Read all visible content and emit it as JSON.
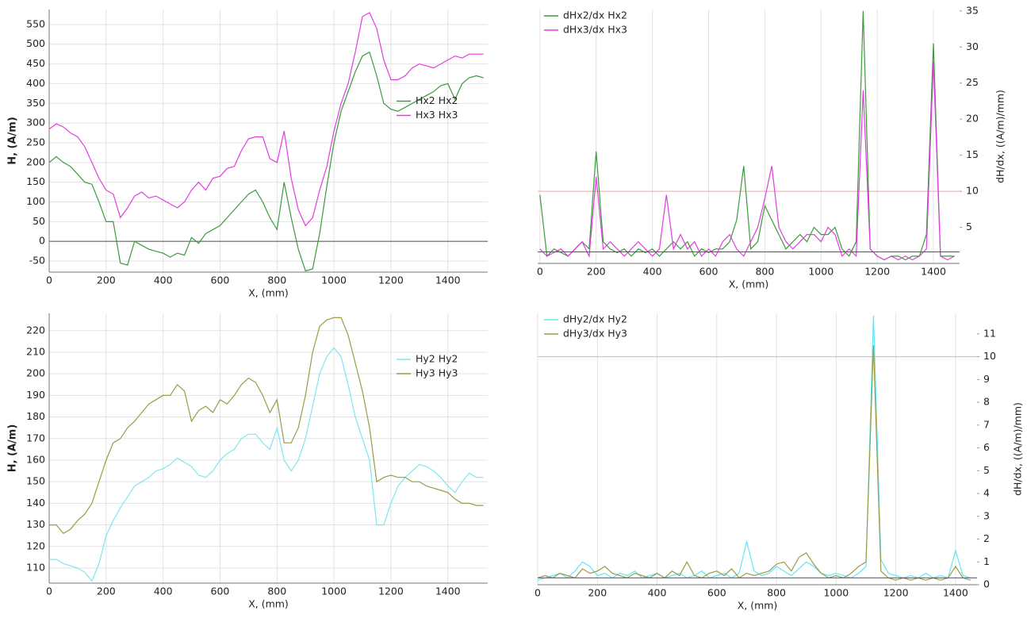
{
  "chart_data": [
    {
      "type": "line",
      "xlabel": "X, (mm)",
      "ylabel": "H, (A/m)",
      "y_axis_side": "left",
      "xgrid": true,
      "ygrid": true,
      "zero_line": true,
      "legend": "center-right",
      "xlim": [
        0,
        1540
      ],
      "ylim": [
        -78,
        588
      ],
      "xticks": [
        0,
        200,
        400,
        600,
        800,
        1000,
        1200,
        1400
      ],
      "yticks": [
        -50,
        0,
        50,
        100,
        150,
        200,
        250,
        300,
        350,
        400,
        450,
        500,
        550
      ],
      "x": [
        0,
        25,
        50,
        75,
        100,
        125,
        150,
        175,
        200,
        225,
        250,
        275,
        300,
        325,
        350,
        375,
        400,
        425,
        450,
        475,
        500,
        525,
        550,
        575,
        600,
        625,
        650,
        675,
        700,
        725,
        750,
        775,
        800,
        825,
        850,
        875,
        900,
        925,
        950,
        975,
        1000,
        1025,
        1050,
        1075,
        1100,
        1125,
        1150,
        1175,
        1200,
        1225,
        1250,
        1275,
        1300,
        1325,
        1350,
        1375,
        1400,
        1425,
        1450,
        1475,
        1500,
        1525
      ],
      "series": [
        {
          "name": "Hx2 Hx2",
          "color": "#3c9a3c",
          "values": [
            200,
            215,
            200,
            190,
            170,
            150,
            145,
            100,
            50,
            50,
            -55,
            -60,
            0,
            -10,
            -20,
            -25,
            -30,
            -40,
            -30,
            -35,
            10,
            -5,
            20,
            30,
            40,
            60,
            80,
            100,
            120,
            130,
            100,
            60,
            30,
            150,
            60,
            -20,
            -75,
            -70,
            20,
            140,
            250,
            330,
            380,
            430,
            470,
            480,
            420,
            350,
            335,
            330,
            340,
            350,
            360,
            370,
            380,
            395,
            400,
            360,
            400,
            415,
            420,
            415
          ]
        },
        {
          "name": "Hx3 Hx3",
          "color": "#e23ce0",
          "values": [
            285,
            298,
            290,
            275,
            265,
            240,
            200,
            160,
            130,
            120,
            60,
            85,
            115,
            125,
            110,
            115,
            105,
            95,
            85,
            100,
            130,
            150,
            130,
            160,
            165,
            185,
            190,
            230,
            260,
            265,
            265,
            210,
            200,
            280,
            160,
            80,
            40,
            60,
            130,
            190,
            280,
            350,
            400,
            480,
            570,
            580,
            540,
            460,
            410,
            410,
            420,
            440,
            450,
            445,
            440,
            450,
            460,
            470,
            465,
            475,
            475,
            475
          ]
        }
      ]
    },
    {
      "type": "line",
      "xlabel": "X, (mm)",
      "ylabel": "dH/dx, ((A/m)/mm)",
      "y_axis_side": "right",
      "xgrid": true,
      "ygrid": false,
      "threshold": 10,
      "baseline": 1.6,
      "legend": "upper-left",
      "xlim": [
        -8,
        1493
      ],
      "ylim": [
        0,
        35.2
      ],
      "xticks": [
        0,
        200,
        400,
        600,
        800,
        1000,
        1200,
        1400
      ],
      "yticks": [
        5,
        10,
        15,
        20,
        25,
        30,
        35
      ],
      "x": [
        0,
        25,
        50,
        75,
        100,
        125,
        150,
        175,
        200,
        225,
        250,
        275,
        300,
        325,
        350,
        375,
        400,
        425,
        450,
        475,
        500,
        525,
        550,
        575,
        600,
        625,
        650,
        675,
        700,
        725,
        750,
        775,
        800,
        825,
        850,
        875,
        900,
        925,
        950,
        975,
        1000,
        1025,
        1050,
        1075,
        1100,
        1125,
        1150,
        1175,
        1200,
        1225,
        1250,
        1275,
        1300,
        1325,
        1350,
        1375,
        1400,
        1425,
        1450,
        1475
      ],
      "series": [
        {
          "name": "dHx2/dx Hx2",
          "color": "#3c9a3c",
          "values": [
            9.5,
            1,
            2,
            1.5,
            1,
            2,
            3,
            2,
            15.5,
            3,
            2,
            1.5,
            2,
            1,
            2,
            1.5,
            2,
            1,
            2,
            3,
            2,
            3,
            1,
            2,
            1.5,
            2,
            2,
            3,
            6,
            13.5,
            2,
            3,
            8,
            6,
            4,
            2,
            3,
            4,
            3,
            5,
            4,
            4,
            5,
            2,
            1,
            3,
            35,
            2,
            1,
            0.5,
            1,
            1,
            0.5,
            1,
            1,
            4,
            30.5,
            1,
            1,
            1
          ]
        },
        {
          "name": "dHx3/dx Hx3",
          "color": "#e23ce0",
          "values": [
            2,
            1,
            1.5,
            2,
            1,
            2,
            3,
            1,
            12,
            2,
            3,
            2,
            1,
            2,
            3,
            2,
            1,
            2,
            9.5,
            2,
            4,
            2,
            3,
            1,
            2,
            1,
            3,
            4,
            2,
            1,
            3,
            5,
            9,
            13.5,
            5,
            3,
            2,
            3,
            4,
            4,
            3,
            5,
            4,
            1,
            2,
            1,
            24,
            2,
            1,
            0.5,
            1,
            0.5,
            1,
            0.5,
            1,
            2,
            28,
            1,
            0.5,
            1
          ]
        }
      ]
    },
    {
      "type": "line",
      "xlabel": "X, (mm)",
      "ylabel": "H, (A/m)",
      "y_axis_side": "left",
      "xgrid": true,
      "ygrid": true,
      "legend": "upper-right",
      "xlim": [
        0,
        1540
      ],
      "ylim": [
        103,
        228
      ],
      "xticks": [
        0,
        200,
        400,
        600,
        800,
        1000,
        1200,
        1400
      ],
      "yticks": [
        110,
        120,
        130,
        140,
        150,
        160,
        170,
        180,
        190,
        200,
        210,
        220
      ],
      "x": [
        0,
        25,
        50,
        75,
        100,
        125,
        150,
        175,
        200,
        225,
        250,
        275,
        300,
        325,
        350,
        375,
        400,
        425,
        450,
        475,
        500,
        525,
        550,
        575,
        600,
        625,
        650,
        675,
        700,
        725,
        750,
        775,
        800,
        825,
        850,
        875,
        900,
        925,
        950,
        975,
        1000,
        1025,
        1050,
        1075,
        1100,
        1125,
        1150,
        1175,
        1200,
        1225,
        1250,
        1275,
        1300,
        1325,
        1350,
        1375,
        1400,
        1425,
        1450,
        1475,
        1500,
        1525
      ],
      "series": [
        {
          "name": "Hy2 Hy2",
          "color": "#7ee6f0",
          "values": [
            114,
            114,
            112,
            111,
            110,
            108,
            104,
            112,
            125,
            132,
            138,
            143,
            148,
            150,
            152,
            155,
            156,
            158,
            161,
            159,
            157,
            153,
            152,
            155,
            160,
            163,
            165,
            170,
            172,
            172,
            168,
            165,
            175,
            160,
            155,
            160,
            170,
            185,
            200,
            208,
            212,
            208,
            195,
            180,
            170,
            160,
            130,
            130,
            140,
            148,
            152,
            155,
            158,
            157,
            155,
            152,
            148,
            145,
            150,
            154,
            152,
            152
          ]
        },
        {
          "name": "Hy3 Hy3",
          "color": "#9c9a44",
          "values": [
            130,
            130,
            126,
            128,
            132,
            135,
            140,
            150,
            160,
            168,
            170,
            175,
            178,
            182,
            186,
            188,
            190,
            190,
            195,
            192,
            178,
            183,
            185,
            182,
            188,
            186,
            190,
            195,
            198,
            196,
            190,
            182,
            188,
            168,
            168,
            175,
            190,
            210,
            222,
            225,
            226,
            226,
            218,
            205,
            192,
            175,
            150,
            152,
            153,
            152,
            152,
            150,
            150,
            148,
            147,
            146,
            145,
            142,
            140,
            140,
            139,
            139
          ]
        }
      ]
    },
    {
      "type": "line",
      "xlabel": "X, (mm)",
      "ylabel": "dH/dx, ((A/m)/mm)",
      "y_axis_side": "right",
      "xgrid": true,
      "ygrid": false,
      "threshold": 10,
      "baseline": 0.3,
      "legend": "upper-left",
      "xlim": [
        0,
        1472
      ],
      "ylim": [
        0,
        11.9
      ],
      "xticks": [
        0,
        200,
        400,
        600,
        800,
        1000,
        1200,
        1400
      ],
      "yticks": [
        0,
        1,
        2,
        3,
        4,
        5,
        6,
        7,
        8,
        9,
        10,
        11
      ],
      "x": [
        0,
        25,
        50,
        75,
        100,
        125,
        150,
        175,
        200,
        225,
        250,
        275,
        300,
        325,
        350,
        375,
        400,
        425,
        450,
        475,
        500,
        525,
        550,
        575,
        600,
        625,
        650,
        675,
        700,
        725,
        750,
        775,
        800,
        825,
        850,
        875,
        900,
        925,
        950,
        975,
        1000,
        1025,
        1050,
        1075,
        1100,
        1125,
        1150,
        1175,
        1200,
        1225,
        1250,
        1275,
        1300,
        1325,
        1350,
        1375,
        1400,
        1425,
        1450
      ],
      "series": [
        {
          "name": "dHy2/dx Hy2",
          "color": "#5ee8f4",
          "values": [
            0.2,
            0.3,
            0.4,
            0.5,
            0.3,
            0.6,
            1,
            0.8,
            0.4,
            0.5,
            0.3,
            0.5,
            0.4,
            0.6,
            0.3,
            0.4,
            0.5,
            0.3,
            0.4,
            0.5,
            0.3,
            0.4,
            0.6,
            0.3,
            0.4,
            0.5,
            0.3,
            0.5,
            1.9,
            0.6,
            0.4,
            0.5,
            0.8,
            0.6,
            0.4,
            0.7,
            1,
            0.8,
            0.5,
            0.4,
            0.5,
            0.4,
            0.3,
            0.5,
            0.8,
            11.8,
            1.1,
            0.5,
            0.4,
            0.3,
            0.4,
            0.3,
            0.5,
            0.3,
            0.4,
            0.3,
            1.5,
            0.4,
            0.3
          ]
        },
        {
          "name": "dHy3/dx Hy3",
          "color": "#9c9a44",
          "values": [
            0.3,
            0.4,
            0.3,
            0.5,
            0.4,
            0.3,
            0.7,
            0.5,
            0.6,
            0.8,
            0.5,
            0.4,
            0.3,
            0.5,
            0.4,
            0.3,
            0.5,
            0.3,
            0.6,
            0.4,
            1,
            0.4,
            0.3,
            0.5,
            0.6,
            0.4,
            0.7,
            0.3,
            0.5,
            0.4,
            0.5,
            0.6,
            0.9,
            1,
            0.6,
            1.2,
            1.4,
            0.9,
            0.5,
            0.3,
            0.4,
            0.3,
            0.5,
            0.8,
            1,
            10.5,
            0.6,
            0.3,
            0.2,
            0.3,
            0.2,
            0.3,
            0.2,
            0.3,
            0.2,
            0.3,
            0.8,
            0.3,
            0.2
          ]
        }
      ]
    }
  ]
}
